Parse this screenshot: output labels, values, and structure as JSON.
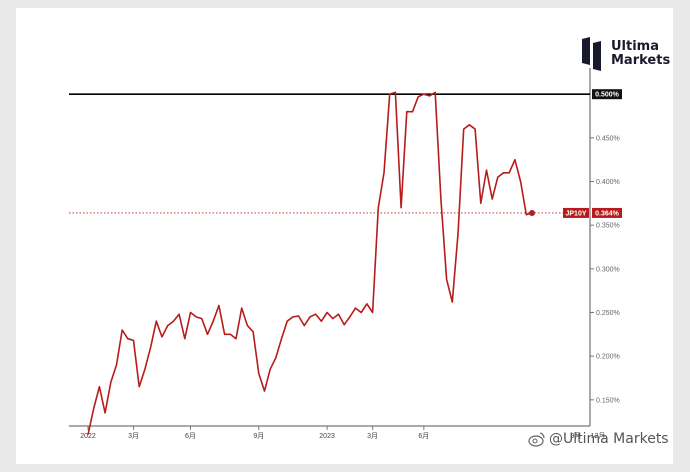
{
  "brand": {
    "name_line1": "Ultima",
    "name_line2": "Markets"
  },
  "watermark": {
    "text": "@Ultima Markets"
  },
  "colors": {
    "series": "#b71c1c",
    "reference_line": "#000000",
    "background": "#ffffff"
  },
  "chart_data": {
    "type": "line",
    "title": "",
    "xlabel": "",
    "ylabel": "",
    "y_axis_side": "right",
    "ylim": [
      0.12,
      0.53
    ],
    "y_tick_labels": [
      "0.150%",
      "0.200%",
      "0.250%",
      "0.300%",
      "0.350%",
      "0.400%",
      "0.450%"
    ],
    "y_tick_values": [
      0.15,
      0.2,
      0.25,
      0.3,
      0.35,
      0.4,
      0.45
    ],
    "x_tick_labels": [
      "2022",
      "3月",
      "6月",
      "9月",
      "2023",
      "3月",
      "6月"
    ],
    "x_tick_index": [
      0,
      8,
      18,
      30,
      42,
      50,
      59
    ],
    "x_extra_tick_labels": [
      "9月",
      "12月"
    ],
    "reference_line": {
      "value": 0.5,
      "label": "0.500%"
    },
    "current": {
      "series_label": "JP10Y",
      "value": 0.364,
      "label": "0.364%"
    },
    "series": [
      {
        "values": [
          0.11,
          0.14,
          0.165,
          0.135,
          0.17,
          0.19,
          0.23,
          0.22,
          0.218,
          0.165,
          0.185,
          0.21,
          0.24,
          0.222,
          0.235,
          0.24,
          0.248,
          0.22,
          0.25,
          0.245,
          0.243,
          0.225,
          0.24,
          0.258,
          0.225,
          0.225,
          0.22,
          0.255,
          0.235,
          0.228,
          0.18,
          0.16,
          0.185,
          0.198,
          0.22,
          0.24,
          0.245,
          0.246,
          0.235,
          0.245,
          0.248,
          0.24,
          0.25,
          0.243,
          0.248,
          0.236,
          0.245,
          0.255,
          0.25,
          0.26,
          0.25,
          0.37,
          0.41,
          0.5,
          0.502,
          0.37,
          0.48,
          0.48,
          0.497,
          0.5,
          0.498,
          0.502,
          0.38,
          0.288,
          0.262,
          0.34,
          0.46,
          0.465,
          0.46,
          0.375,
          0.413,
          0.38,
          0.405,
          0.41,
          0.41,
          0.425,
          0.4,
          0.362,
          0.364
        ]
      }
    ]
  }
}
